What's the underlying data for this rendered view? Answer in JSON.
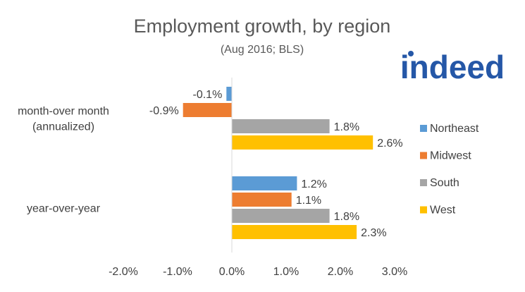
{
  "brand": {
    "logo_text": "indeed",
    "logo_color": "#2557a7"
  },
  "chart_data": {
    "type": "bar",
    "orientation": "horizontal",
    "title": "Employment growth, by region",
    "subtitle": "(Aug 2016; BLS)",
    "categories": [
      {
        "lines": [
          "month-over month",
          "(annualized)"
        ]
      },
      {
        "lines": [
          "year-over-year"
        ]
      }
    ],
    "series": [
      {
        "name": "Northeast",
        "color": "#5b9bd5",
        "values": [
          -0.1,
          1.2
        ],
        "labels": [
          "-0.1%",
          "1.2%"
        ]
      },
      {
        "name": "Midwest",
        "color": "#ed7d31",
        "values": [
          -0.9,
          1.1
        ],
        "labels": [
          "-0.9%",
          "1.1%"
        ]
      },
      {
        "name": "South",
        "color": "#a5a5a5",
        "values": [
          1.8,
          1.8
        ],
        "labels": [
          "1.8%",
          "1.8%"
        ]
      },
      {
        "name": "West",
        "color": "#ffc000",
        "values": [
          2.6,
          2.3
        ],
        "labels": [
          "2.6%",
          "2.3%"
        ]
      }
    ],
    "xlim": [
      -2.0,
      3.0
    ],
    "xticks": [
      -2.0,
      -1.0,
      0.0,
      1.0,
      2.0,
      3.0
    ],
    "xtick_labels": [
      "-2.0%",
      "-1.0%",
      "0.0%",
      "1.0%",
      "2.0%",
      "3.0%"
    ],
    "grid": false,
    "legend_position": "right"
  }
}
